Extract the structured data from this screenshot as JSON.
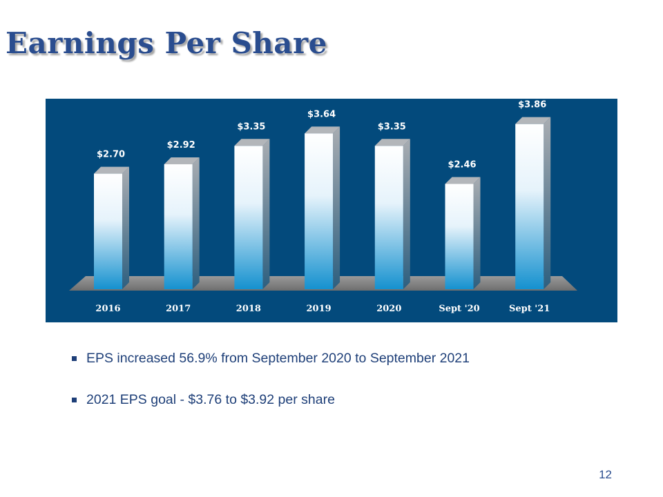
{
  "slide": {
    "title": "Earnings Per Share",
    "page_number": "12",
    "bullets": [
      "EPS increased 56.9% from September 2020 to September 2021",
      "2021 EPS goal - $3.76 to $3.92 per share"
    ]
  },
  "colors": {
    "title": "#2a4d8f",
    "panel": "#034a7c",
    "bar_top": "#ffffff",
    "bar_bottom": "#1591cf",
    "label": "#ffffff",
    "text": "#1e3f78"
  },
  "chart_data": {
    "type": "bar",
    "title": "",
    "xlabel": "",
    "ylabel": "",
    "categories": [
      "2016",
      "2017",
      "2018",
      "2019",
      "2020",
      "Sept '20",
      "Sept '21"
    ],
    "values": [
      2.7,
      2.92,
      3.35,
      3.64,
      3.35,
      2.46,
      3.86
    ],
    "data_labels": [
      "$2.70",
      "$2.92",
      "$3.35",
      "$3.64",
      "$3.35",
      "$2.46",
      "$3.86"
    ],
    "ylim": [
      0,
      4.0
    ],
    "grid": false,
    "legend": "none"
  }
}
